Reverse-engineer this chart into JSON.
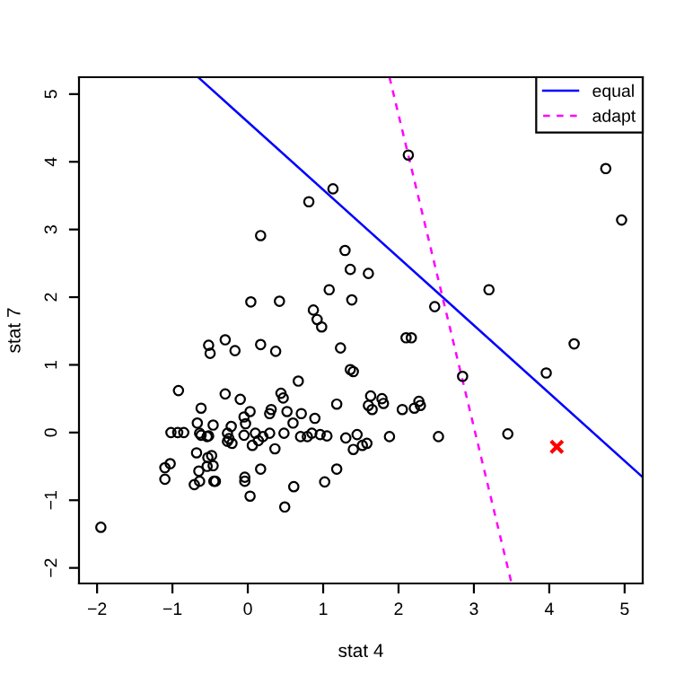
{
  "chart_data": {
    "type": "scatter",
    "xlabel": "stat 4",
    "ylabel": "stat 7",
    "xlim": [
      -2.24,
      5.24
    ],
    "ylim": [
      -2.23,
      5.25
    ],
    "xticks": [
      {
        "value": -2,
        "label": "−2"
      },
      {
        "value": -1,
        "label": "−1"
      },
      0,
      1,
      2,
      3,
      4,
      5
    ],
    "yticks": [
      {
        "value": -2,
        "label": "−2"
      },
      {
        "value": -1,
        "label": "−1"
      },
      0,
      1,
      2,
      3,
      4,
      5
    ],
    "grid": false,
    "legend": "top right",
    "series": [
      {
        "marker": "circle",
        "color": "#000000",
        "x": [
          1.13,
          0.81,
          0.17,
          1.29,
          1.36,
          1.08,
          1.38,
          0.04,
          0.42,
          0.87,
          0.92,
          0.98,
          -0.52,
          -0.5,
          -0.3,
          -0.17,
          0.17,
          0.37,
          1.23,
          2.13,
          4.75,
          4.96,
          1.6,
          3.2,
          2.48,
          2.1,
          2.17,
          4.33,
          1.36,
          1.4,
          -0.92,
          -0.3,
          -0.1,
          0.44,
          0.47,
          0.67,
          -0.62,
          0.03,
          -0.05,
          0.31,
          0.29,
          0.52,
          0.71,
          1.18,
          0.89,
          -0.67,
          -0.46,
          -0.22,
          -0.03,
          0.6,
          -1.02,
          -0.93,
          -0.85,
          -0.64,
          -0.62,
          -0.54,
          -0.52,
          -0.27,
          -0.25,
          -0.27,
          -0.21,
          -0.05,
          0.1,
          0.2,
          0.29,
          0.06,
          0.14,
          0.36,
          0.48,
          0.7,
          0.79,
          0.85,
          0.96,
          1.05,
          1.3,
          1.45,
          1.4,
          -0.68,
          -0.48,
          -0.53,
          -0.46,
          -0.54,
          -1.03,
          -1.1,
          -0.65,
          -0.04,
          -0.04,
          0.17,
          -0.64,
          -0.45,
          -0.43,
          -0.71,
          -1.1,
          1.18,
          1.02,
          0.61,
          0.03,
          0.49,
          -1.95,
          3.96,
          2.85,
          1.63,
          1.6,
          1.65,
          1.78,
          1.8,
          2.05,
          2.21,
          2.27,
          2.29,
          1.52,
          1.58,
          1.88,
          2.53,
          3.45
        ],
        "values": [
          3.6,
          3.41,
          2.91,
          2.69,
          2.41,
          2.11,
          1.96,
          1.93,
          1.94,
          1.81,
          1.67,
          1.56,
          1.29,
          1.17,
          1.37,
          1.21,
          1.3,
          1.2,
          1.25,
          4.1,
          3.9,
          3.14,
          2.35,
          2.11,
          1.86,
          1.4,
          1.4,
          1.31,
          0.93,
          0.9,
          0.62,
          0.57,
          0.49,
          0.58,
          0.51,
          0.76,
          0.36,
          0.31,
          0.23,
          0.34,
          0.28,
          0.31,
          0.28,
          0.42,
          0.21,
          0.14,
          0.11,
          0.09,
          0.13,
          0.14,
          0,
          0,
          0,
          -0.01,
          -0.04,
          -0.06,
          -0.05,
          -0.01,
          -0.09,
          -0.13,
          -0.16,
          -0.04,
          -0.01,
          -0.06,
          -0.01,
          -0.19,
          -0.12,
          -0.24,
          -0.01,
          -0.06,
          -0.06,
          -0.01,
          -0.03,
          -0.05,
          -0.08,
          -0.03,
          -0.25,
          -0.3,
          -0.34,
          -0.37,
          -0.49,
          -0.5,
          -0.46,
          -0.52,
          -0.57,
          -0.66,
          -0.72,
          -0.54,
          -0.72,
          -0.72,
          -0.72,
          -0.77,
          -0.69,
          -0.54,
          -0.73,
          -0.8,
          -0.94,
          -1.1,
          -1.4,
          0.88,
          0.83,
          0.54,
          0.4,
          0.34,
          0.5,
          0.43,
          0.34,
          0.36,
          0.46,
          0.4,
          -0.19,
          -0.16,
          -0.06,
          -0.06,
          -0.02
        ]
      },
      {
        "marker": "cross",
        "color": "#ff0000",
        "x": [
          4.1
        ],
        "values": [
          -0.21
        ]
      },
      {
        "type": "line",
        "name": "equal",
        "color": "#0000ff",
        "line_style": "solid",
        "marker": "none",
        "x": [
          -0.66,
          5.24
        ],
        "values": [
          5.25,
          -0.66
        ]
      },
      {
        "type": "line",
        "name": "adapt",
        "color": "#ff00ff",
        "line_style": "dashed",
        "marker": "none",
        "x": [
          1.88,
          3.5
        ],
        "values": [
          5.25,
          -2.23
        ]
      }
    ]
  }
}
